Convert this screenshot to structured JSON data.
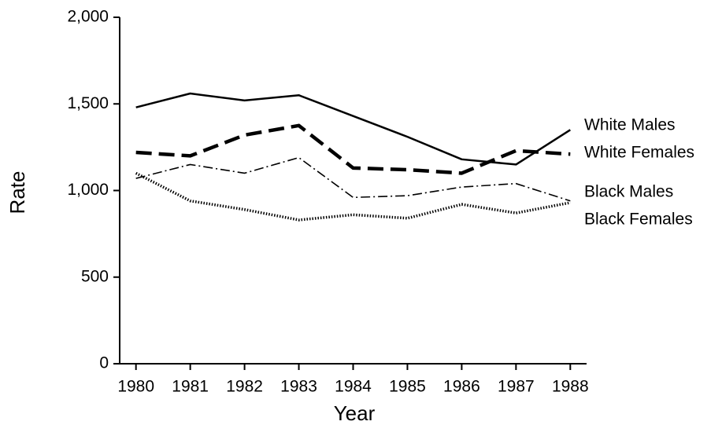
{
  "chart_data": {
    "type": "line",
    "x_label": "Year",
    "y_label": "Rate",
    "x": [
      1980,
      1981,
      1982,
      1983,
      1984,
      1985,
      1986,
      1987,
      1988
    ],
    "xlim": [
      1979.7,
      1988.3
    ],
    "xticks": [
      1980,
      1981,
      1982,
      1983,
      1984,
      1985,
      1986,
      1987,
      1988
    ],
    "ylim": [
      0,
      2000
    ],
    "yticks": [
      0,
      500,
      {
        "value": 1000,
        "label": "1,000"
      },
      {
        "value": 1500,
        "label": "1,500"
      },
      {
        "value": 2000,
        "label": "2,000"
      }
    ],
    "grid": false,
    "legend": "right",
    "series": [
      {
        "name": "White Males",
        "color": "#000000",
        "linestyle": "solid",
        "values": [
          1480,
          1560,
          1520,
          1550,
          1430,
          1310,
          1180,
          1150,
          1350
        ]
      },
      {
        "name": "White Females",
        "color": "#000000",
        "linestyle": "dashed",
        "values": [
          1220,
          1200,
          1320,
          1375,
          1130,
          1120,
          1100,
          1230,
          1210
        ]
      },
      {
        "name": "Black Males",
        "color": "#000000",
        "linestyle": "dashdot",
        "values": [
          1070,
          1150,
          1100,
          1190,
          960,
          970,
          1020,
          1040,
          940
        ]
      },
      {
        "name": "Black Females",
        "color": "#000000",
        "linestyle": "dotted",
        "values": [
          1100,
          940,
          890,
          830,
          860,
          840,
          920,
          870,
          930
        ]
      }
    ]
  }
}
